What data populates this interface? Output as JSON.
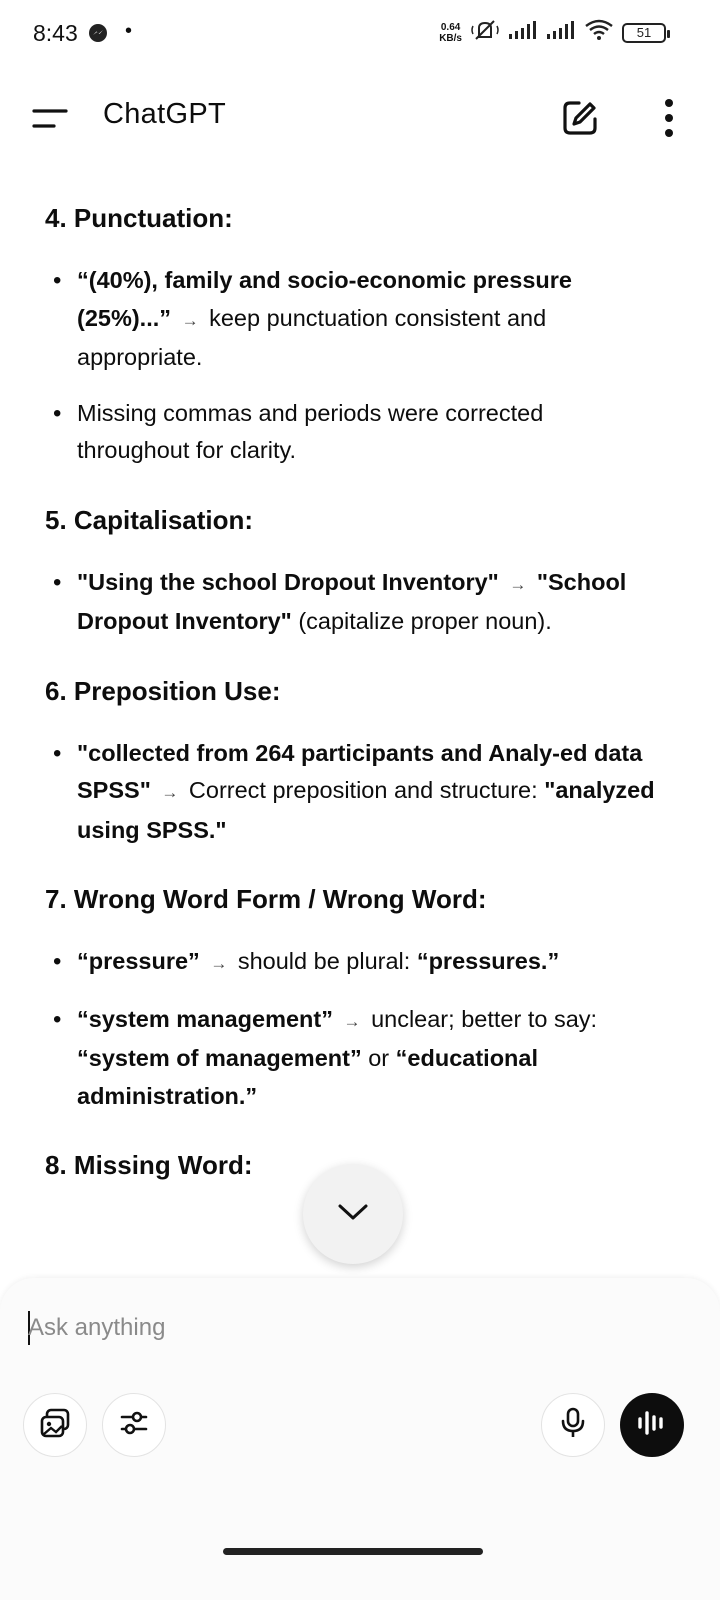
{
  "status_bar": {
    "time": "8:43",
    "net_speed_value": "0.64",
    "net_speed_unit": "KB/s",
    "battery": "51",
    "icons": [
      "messenger-icon",
      "mute-icon",
      "signal-icon",
      "signal-icon",
      "wifi-icon",
      "battery-icon"
    ]
  },
  "header": {
    "title": "ChatGPT",
    "icons": [
      "menu-icon",
      "new-chat-icon",
      "more-options-icon"
    ]
  },
  "sections": [
    {
      "heading": "4. Punctuation:",
      "bullets": [
        [
          {
            "b": true,
            "t": "“(40%), family and socio-economic pressure (25%)...”"
          },
          {
            "arrow": true,
            "t": "→"
          },
          {
            "b": false,
            "t": "keep punctuation consistent and appropriate."
          }
        ],
        [
          {
            "b": false,
            "t": "Missing commas and periods were corrected throughout for clarity."
          }
        ]
      ]
    },
    {
      "heading": "5. Capitalisation:",
      "bullets": [
        [
          {
            "b": true,
            "t": "\"Using the school Dropout Inventory\""
          },
          {
            "arrow": true,
            "t": "→"
          },
          {
            "b": true,
            "t": "\"School Dropout Inventory\""
          },
          {
            "b": false,
            "t": " (capitalize proper noun)."
          }
        ]
      ]
    },
    {
      "heading": "6. Preposition Use:",
      "bullets": [
        [
          {
            "b": true,
            "t": "\"collected from 264 participants and Analy-ed data SPSS\""
          },
          {
            "arrow": true,
            "t": "→"
          },
          {
            "b": false,
            "t": "Correct preposition and structure: "
          },
          {
            "b": true,
            "t": "\"analyzed using SPSS.\""
          }
        ]
      ]
    },
    {
      "heading": "7. Wrong Word Form / Wrong Word:",
      "bullets": [
        [
          {
            "b": true,
            "t": "“pressure”"
          },
          {
            "arrow": true,
            "t": "→"
          },
          {
            "b": false,
            "t": "should be plural: "
          },
          {
            "b": true,
            "t": "“pressures.”"
          }
        ],
        [
          {
            "b": true,
            "t": "“system management”"
          },
          {
            "arrow": true,
            "t": "→"
          },
          {
            "b": false,
            "t": "unclear; better to say: "
          },
          {
            "b": true,
            "t": "“system of management”"
          },
          {
            "b": false,
            "t": " or "
          },
          {
            "b": true,
            "t": "“educational administration.”"
          }
        ]
      ]
    },
    {
      "heading": "8. Missing Word:",
      "bullets": []
    }
  ],
  "composer": {
    "placeholder": "Ask anything",
    "buttons": [
      "attach-image-icon",
      "tools-icon",
      "microphone-icon",
      "voice-mode-icon"
    ]
  },
  "scroll_button": {
    "icon": "chevron-down-icon"
  }
}
